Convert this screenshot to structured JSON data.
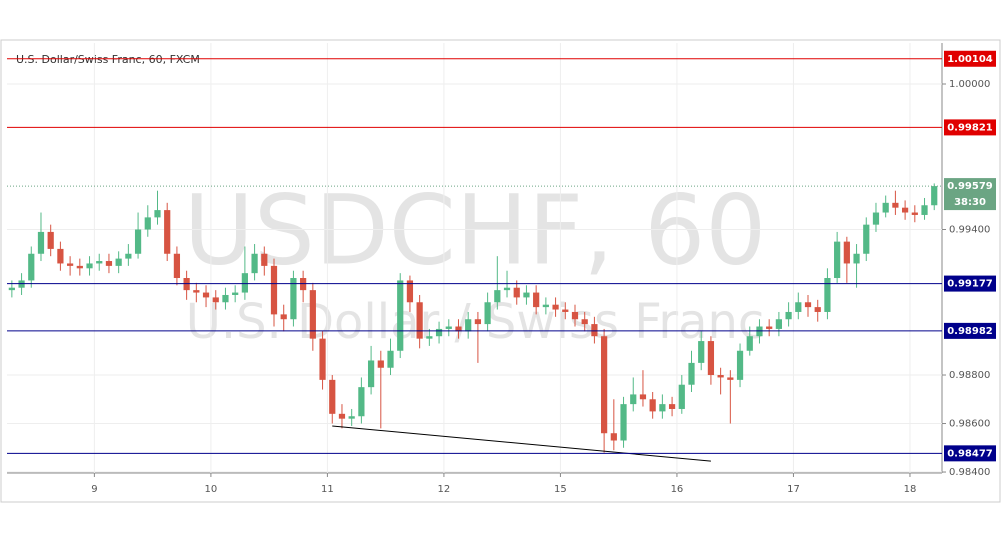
{
  "chart_data": {
    "type": "candlestick",
    "title": "U.S. Dollar/Swiss Franc, 60, FXCM",
    "watermark": "USDCHF, 60",
    "watermark_subtitle": "U.S. Dollar / Swiss Franc",
    "categories": [
      null,
      null,
      null,
      null,
      null,
      null,
      null,
      null,
      null,
      "9",
      null,
      null,
      null,
      null,
      null,
      null,
      null,
      null,
      null,
      null,
      null,
      "10",
      null,
      null,
      null,
      null,
      null,
      null,
      null,
      null,
      null,
      null,
      null,
      "11",
      null,
      null,
      null,
      null,
      null,
      null,
      null,
      null,
      null,
      null,
      null,
      "12",
      null,
      null,
      null,
      null,
      null,
      null,
      null,
      null,
      null,
      null,
      null,
      "15",
      null,
      null,
      null,
      null,
      null,
      null,
      null,
      null,
      null,
      null,
      null,
      "16",
      null,
      null,
      null,
      null,
      null,
      null,
      null,
      null,
      null,
      null,
      null,
      "17",
      null,
      null,
      null,
      null,
      null,
      null,
      null,
      null,
      null,
      null,
      null,
      "18",
      null,
      null
    ],
    "open": [
      0.9915,
      0.9916,
      0.9919,
      0.993,
      0.9939,
      0.9932,
      0.9926,
      0.9925,
      0.9924,
      0.9926,
      0.9927,
      0.9925,
      0.9928,
      0.993,
      0.994,
      0.9945,
      0.9948,
      0.993,
      0.992,
      0.9915,
      0.9914,
      0.9912,
      0.991,
      0.9913,
      0.9914,
      0.9922,
      0.993,
      0.9925,
      0.9905,
      0.9903,
      0.992,
      0.9915,
      0.9895,
      0.9878,
      0.9864,
      0.9862,
      0.9863,
      0.9875,
      0.9886,
      0.9883,
      0.989,
      0.9919,
      0.991,
      0.9895,
      0.9896,
      0.9899,
      0.99,
      0.9898,
      0.9903,
      0.9901,
      0.991,
      0.9915,
      0.9916,
      0.9912,
      0.9914,
      0.9908,
      0.9909,
      0.9907,
      0.9906,
      0.9903,
      0.9901,
      0.9896,
      0.9856,
      0.9853,
      0.9868,
      0.9872,
      0.987,
      0.9865,
      0.9868,
      0.9866,
      0.9876,
      0.9885,
      0.9894,
      0.988,
      0.9879,
      0.9878,
      0.989,
      0.9896,
      0.99,
      0.9899,
      0.9903,
      0.9906,
      0.991,
      0.9908,
      0.9906,
      0.992,
      0.9935,
      0.9926,
      0.993,
      0.9942,
      0.9947,
      0.9951,
      0.9949,
      0.9947,
      0.9946,
      0.995
    ],
    "high": [
      0.9919,
      0.9922,
      0.9933,
      0.9947,
      0.9942,
      0.9935,
      0.9929,
      0.9928,
      0.9929,
      0.993,
      0.993,
      0.9931,
      0.9934,
      0.9947,
      0.995,
      0.9956,
      0.9951,
      0.9933,
      0.9923,
      0.9918,
      0.9917,
      0.9915,
      0.9916,
      0.9917,
      0.9933,
      0.9934,
      0.9933,
      0.9928,
      0.9909,
      0.9923,
      0.9923,
      0.9918,
      0.9898,
      0.988,
      0.9868,
      0.9866,
      0.9879,
      0.9892,
      0.989,
      0.9895,
      0.9922,
      0.9921,
      0.9913,
      0.9899,
      0.9902,
      0.9903,
      0.9903,
      0.9906,
      0.9906,
      0.9914,
      0.9929,
      0.9923,
      0.9919,
      0.9917,
      0.9917,
      0.9912,
      0.9912,
      0.991,
      0.9909,
      0.9906,
      0.9904,
      0.9899,
      0.987,
      0.9871,
      0.9879,
      0.9882,
      0.9873,
      0.9872,
      0.9871,
      0.988,
      0.989,
      0.9898,
      0.9896,
      0.9883,
      0.9882,
      0.9893,
      0.99,
      0.9903,
      0.9903,
      0.9906,
      0.991,
      0.9914,
      0.9913,
      0.9911,
      0.9924,
      0.9939,
      0.9937,
      0.9934,
      0.9945,
      0.9951,
      0.9954,
      0.9956,
      0.9952,
      0.995,
      0.9953,
      0.9959
    ],
    "low": [
      0.9912,
      0.9913,
      0.9916,
      0.9927,
      0.9929,
      0.9923,
      0.9921,
      0.9921,
      0.9921,
      0.9923,
      0.9922,
      0.9922,
      0.9925,
      0.9928,
      0.9937,
      0.9942,
      0.9927,
      0.9917,
      0.9911,
      0.991,
      0.9908,
      0.9907,
      0.9907,
      0.991,
      0.9911,
      0.9919,
      0.9921,
      0.99,
      0.9898,
      0.99,
      0.991,
      0.989,
      0.9874,
      0.986,
      0.9858,
      0.9859,
      0.986,
      0.9872,
      0.9858,
      0.988,
      0.9887,
      0.9906,
      0.9891,
      0.9892,
      0.9893,
      0.9896,
      0.9895,
      0.9895,
      0.9885,
      0.9898,
      0.9907,
      0.9912,
      0.9909,
      0.9909,
      0.9905,
      0.9905,
      0.9904,
      0.9903,
      0.99,
      0.9898,
      0.9893,
      0.9848,
      0.9849,
      0.985,
      0.9865,
      0.9867,
      0.9862,
      0.9862,
      0.9863,
      0.9864,
      0.9873,
      0.9882,
      0.9876,
      0.9872,
      0.986,
      0.9875,
      0.9888,
      0.9893,
      0.9896,
      0.9896,
      0.99,
      0.9903,
      0.9904,
      0.9902,
      0.9903,
      0.9918,
      0.9918,
      0.9916,
      0.9927,
      0.9939,
      0.9945,
      0.9946,
      0.9944,
      0.9943,
      0.9944,
      0.9948
    ],
    "close": [
      0.9916,
      0.9919,
      0.993,
      0.9939,
      0.9932,
      0.9926,
      0.9925,
      0.9924,
      0.9926,
      0.9927,
      0.9925,
      0.9928,
      0.993,
      0.994,
      0.9945,
      0.9948,
      0.993,
      0.992,
      0.9915,
      0.9914,
      0.9912,
      0.991,
      0.9913,
      0.9914,
      0.9922,
      0.993,
      0.9925,
      0.9905,
      0.9903,
      0.992,
      0.9915,
      0.9895,
      0.9878,
      0.9864,
      0.9862,
      0.9863,
      0.9875,
      0.9886,
      0.9883,
      0.989,
      0.9919,
      0.991,
      0.9895,
      0.9896,
      0.9899,
      0.99,
      0.9898,
      0.9903,
      0.9901,
      0.991,
      0.9915,
      0.9916,
      0.9912,
      0.9914,
      0.9908,
      0.9909,
      0.9907,
      0.9906,
      0.9903,
      0.9901,
      0.9896,
      0.9856,
      0.9853,
      0.9868,
      0.9872,
      0.987,
      0.9865,
      0.9868,
      0.9866,
      0.9876,
      0.9885,
      0.9894,
      0.988,
      0.9879,
      0.9878,
      0.989,
      0.9896,
      0.99,
      0.9899,
      0.9903,
      0.9906,
      0.991,
      0.9908,
      0.9906,
      0.992,
      0.9935,
      0.9926,
      0.993,
      0.9942,
      0.9947,
      0.9951,
      0.9949,
      0.9947,
      0.9946,
      0.995,
      0.99579
    ],
    "up_color": "#53b987",
    "down_color": "#d75442",
    "ylim": [
      0.98396,
      1.00169
    ],
    "yticks": [
      {
        "value": 0.984,
        "label": "0.98400"
      },
      {
        "value": 0.986,
        "label": "0.98600"
      },
      {
        "value": 0.988,
        "label": "0.98800"
      },
      {
        "value": 0.994,
        "label": "0.99400"
      },
      {
        "value": 1,
        "label": "1.00000"
      }
    ],
    "grid": true,
    "levels": [
      {
        "value": 1.00104,
        "color": "#e00000"
      },
      {
        "value": 0.99821,
        "color": "#e00000"
      },
      {
        "value": 0.99177,
        "color": "#00008b"
      },
      {
        "value": 0.98982,
        "color": "#00008b"
      },
      {
        "value": 0.98477,
        "color": "#00008b"
      }
    ],
    "current_price": {
      "value": 0.99579,
      "countdown": "38:30",
      "color": "#6ba583"
    },
    "trendline": {
      "start": [
        33,
        0.9859
      ],
      "end": [
        72,
        0.98445
      ],
      "color": "#000000"
    }
  }
}
